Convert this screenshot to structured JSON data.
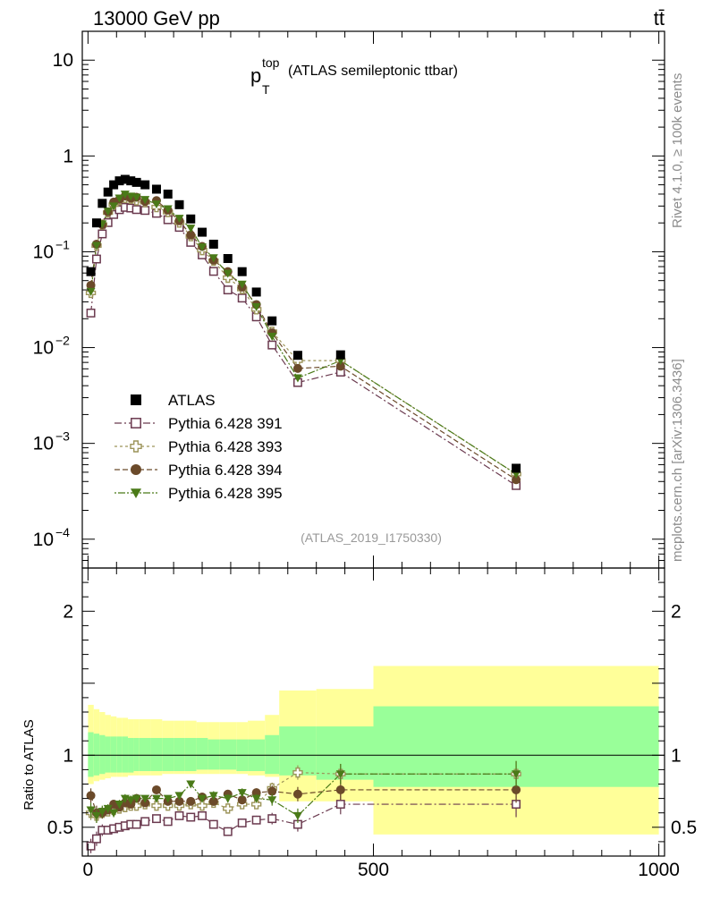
{
  "header": {
    "left": "13000 GeV pp",
    "right": "tt̄"
  },
  "side_labels": {
    "top": "Rivet 4.1.0, ≥ 100k events",
    "bottom": "mcplots.cern.ch [arXiv:1306.3436]"
  },
  "colors": {
    "data": "#000000",
    "s391": "#6b3a4f",
    "s393": "#9c9459",
    "s394": "#6b4a2a",
    "s395": "#4a7a18",
    "band_inner": "#99ff99",
    "band_outer": "#ffff99"
  },
  "chart_data": {
    "type": "scatter",
    "title_main": "p",
    "title_sup": "top",
    "title_sub": "T",
    "title_rest": "(ATLAS semileptonic ttbar)",
    "analysis_id": "(ATLAS_2019_I1750330)",
    "yscale": "log",
    "ylim": [
      5e-05,
      20
    ],
    "xlim": [
      -10,
      1010
    ],
    "y_ticks": [
      {
        "v": 10,
        "base": "10",
        "exp": ""
      },
      {
        "v": 1,
        "base": "1",
        "exp": ""
      },
      {
        "v": 0.1,
        "base": "10",
        "exp": "−1"
      },
      {
        "v": 0.01,
        "base": "10",
        "exp": "−2"
      },
      {
        "v": 0.001,
        "base": "10",
        "exp": "−3"
      },
      {
        "v": 0.0001,
        "base": "10",
        "exp": "−4"
      }
    ],
    "x_ticks": [
      {
        "v": 0,
        "label": "0"
      },
      {
        "v": 500,
        "label": "500"
      },
      {
        "v": 1000,
        "label": "1000"
      }
    ],
    "ratio_ylabel": "Ratio to ATLAS",
    "ratio_ylim": [
      0.3,
      2.3
    ],
    "ratio_ticks": [
      {
        "v": 0.5,
        "label": "0.5"
      },
      {
        "v": 1,
        "label": "1"
      },
      {
        "v": 2,
        "label": "2"
      }
    ],
    "x": [
      5,
      15,
      25,
      35,
      45,
      55,
      65,
      75,
      85,
      100,
      120,
      140,
      160,
      180,
      200,
      220,
      245,
      270,
      295,
      322.5,
      367.5,
      442.5,
      750
    ],
    "bins": [
      [
        0,
        10
      ],
      [
        10,
        20
      ],
      [
        20,
        30
      ],
      [
        30,
        40
      ],
      [
        40,
        50
      ],
      [
        50,
        60
      ],
      [
        60,
        70
      ],
      [
        70,
        80
      ],
      [
        80,
        90
      ],
      [
        90,
        110
      ],
      [
        110,
        130
      ],
      [
        130,
        150
      ],
      [
        150,
        170
      ],
      [
        170,
        190
      ],
      [
        190,
        210
      ],
      [
        210,
        230
      ],
      [
        230,
        260
      ],
      [
        260,
        280
      ],
      [
        280,
        310
      ],
      [
        310,
        335
      ],
      [
        335,
        400
      ],
      [
        400,
        500
      ],
      [
        500,
        1000
      ]
    ],
    "data": {
      "name": "ATLAS",
      "values": [
        0.062,
        0.2,
        0.32,
        0.42,
        0.5,
        0.55,
        0.57,
        0.55,
        0.53,
        0.5,
        0.45,
        0.4,
        0.31,
        0.22,
        0.16,
        0.12,
        0.085,
        0.062,
        0.038,
        0.019,
        0.0083,
        0.0084,
        0.00055
      ]
    },
    "series": [
      {
        "name": "Pythia 6.428 391",
        "marker": "square-open",
        "dash": "8,3,2,3",
        "ratio": [
          0.37,
          0.42,
          0.48,
          0.48,
          0.49,
          0.5,
          0.51,
          0.52,
          0.52,
          0.54,
          0.56,
          0.54,
          0.58,
          0.57,
          0.58,
          0.52,
          0.47,
          0.53,
          0.55,
          0.56,
          0.52,
          0.66,
          0.66
        ]
      },
      {
        "name": "Pythia 6.428 393",
        "marker": "cross-open",
        "dash": "3,3",
        "ratio": [
          0.6,
          0.58,
          0.6,
          0.61,
          0.62,
          0.63,
          0.64,
          0.65,
          0.65,
          0.66,
          0.65,
          0.65,
          0.65,
          0.66,
          0.65,
          0.67,
          0.63,
          0.66,
          0.66,
          0.77,
          0.88,
          0.87,
          0.87
        ]
      },
      {
        "name": "Pythia 6.428 394",
        "marker": "circle",
        "dash": "6,3",
        "ratio": [
          0.72,
          0.6,
          0.6,
          0.62,
          0.66,
          0.64,
          0.67,
          0.66,
          0.7,
          0.67,
          0.76,
          0.68,
          0.68,
          0.68,
          0.71,
          0.68,
          0.73,
          0.69,
          0.74,
          0.75,
          0.73,
          0.76,
          0.76
        ]
      },
      {
        "name": "Pythia 6.428 395",
        "marker": "triangle-down",
        "dash": "2,2,8,2",
        "ratio": [
          0.62,
          0.58,
          0.61,
          0.63,
          0.6,
          0.66,
          0.7,
          0.69,
          0.7,
          0.7,
          0.7,
          0.7,
          0.72,
          0.8,
          0.7,
          0.72,
          0.7,
          0.74,
          0.7,
          0.69,
          0.58,
          0.87,
          0.87
        ]
      }
    ],
    "ratio_errors": [
      0.05,
      0.05,
      0.04,
      0.03,
      0.03,
      0.03,
      0.03,
      0.03,
      0.03,
      0.02,
      0.02,
      0.02,
      0.02,
      0.02,
      0.02,
      0.03,
      0.03,
      0.03,
      0.03,
      0.04,
      0.05,
      0.07,
      0.09
    ],
    "band_inner": [
      [
        0.85,
        1.16
      ],
      [
        0.86,
        1.15
      ],
      [
        0.87,
        1.14
      ],
      [
        0.88,
        1.13
      ],
      [
        0.88,
        1.13
      ],
      [
        0.88,
        1.13
      ],
      [
        0.88,
        1.13
      ],
      [
        0.88,
        1.12
      ],
      [
        0.89,
        1.12
      ],
      [
        0.89,
        1.12
      ],
      [
        0.89,
        1.12
      ],
      [
        0.89,
        1.12
      ],
      [
        0.89,
        1.12
      ],
      [
        0.89,
        1.12
      ],
      [
        0.9,
        1.12
      ],
      [
        0.9,
        1.11
      ],
      [
        0.9,
        1.11
      ],
      [
        0.89,
        1.11
      ],
      [
        0.89,
        1.11
      ],
      [
        0.87,
        1.14
      ],
      [
        0.86,
        1.2
      ],
      [
        0.83,
        1.2
      ],
      [
        0.78,
        1.34
      ]
    ],
    "band_outer": [
      [
        0.8,
        1.35
      ],
      [
        0.82,
        1.32
      ],
      [
        0.83,
        1.3
      ],
      [
        0.84,
        1.28
      ],
      [
        0.85,
        1.27
      ],
      [
        0.85,
        1.26
      ],
      [
        0.85,
        1.26
      ],
      [
        0.86,
        1.25
      ],
      [
        0.86,
        1.25
      ],
      [
        0.86,
        1.25
      ],
      [
        0.86,
        1.25
      ],
      [
        0.87,
        1.24
      ],
      [
        0.87,
        1.24
      ],
      [
        0.87,
        1.24
      ],
      [
        0.87,
        1.23
      ],
      [
        0.87,
        1.23
      ],
      [
        0.87,
        1.23
      ],
      [
        0.87,
        1.23
      ],
      [
        0.86,
        1.24
      ],
      [
        0.85,
        1.28
      ],
      [
        0.68,
        1.45
      ],
      [
        0.68,
        1.46
      ],
      [
        0.45,
        1.62
      ]
    ]
  }
}
